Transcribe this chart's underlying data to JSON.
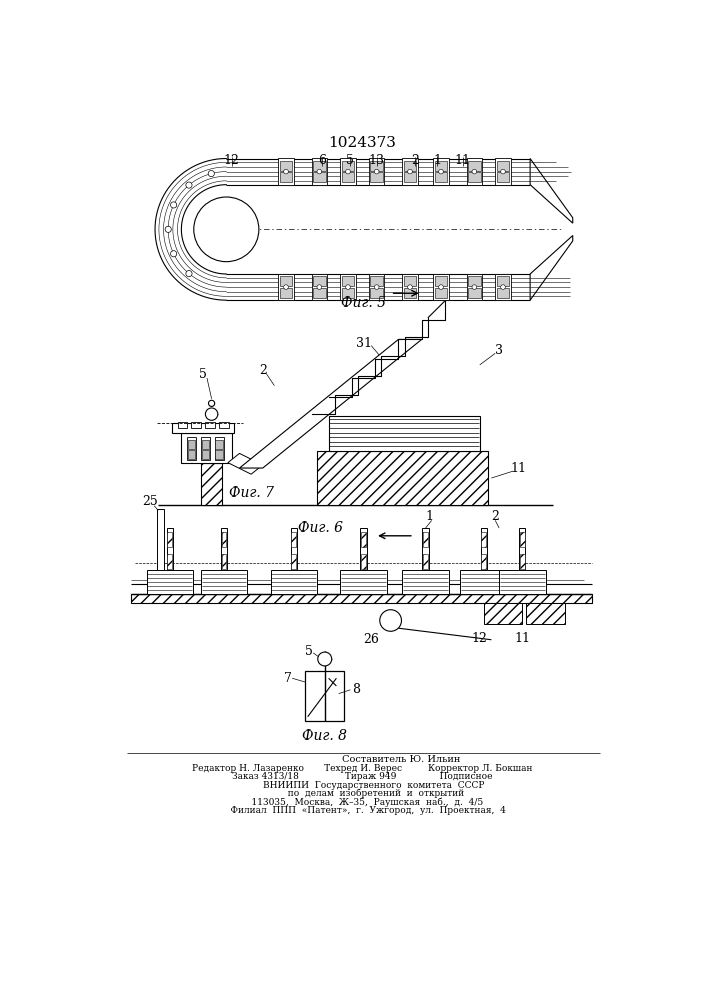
{
  "title": "1024373",
  "bg_color": "#ffffff",
  "fig5_label": "Фиг. 5",
  "fig6_label": "Фиг. 6",
  "fig7_label": "Фиг. 7",
  "fig8_label": "Фиг. 8",
  "footer_line1": "                         Составитель Ю. Ильин",
  "footer_line2": "Редактор Н. Лазаренко       Техред И. Верес         Корректор Л. Бокшан",
  "footer_line3": "Заказ 4313/18                Тираж 949               Подписное",
  "footer_line4": "        ВНИИПИ  Государственного  комитета  СССР",
  "footer_line5": "          по  делам  изобретений  и  открытий",
  "footer_line6": "    113035,  Москва,  Ж–35,  Раушская  наб.,  д.  4/5",
  "footer_line7": "    Филиал  ППП  «Патент»,  г.  Ужгород,  ул.  Проектная,  4"
}
